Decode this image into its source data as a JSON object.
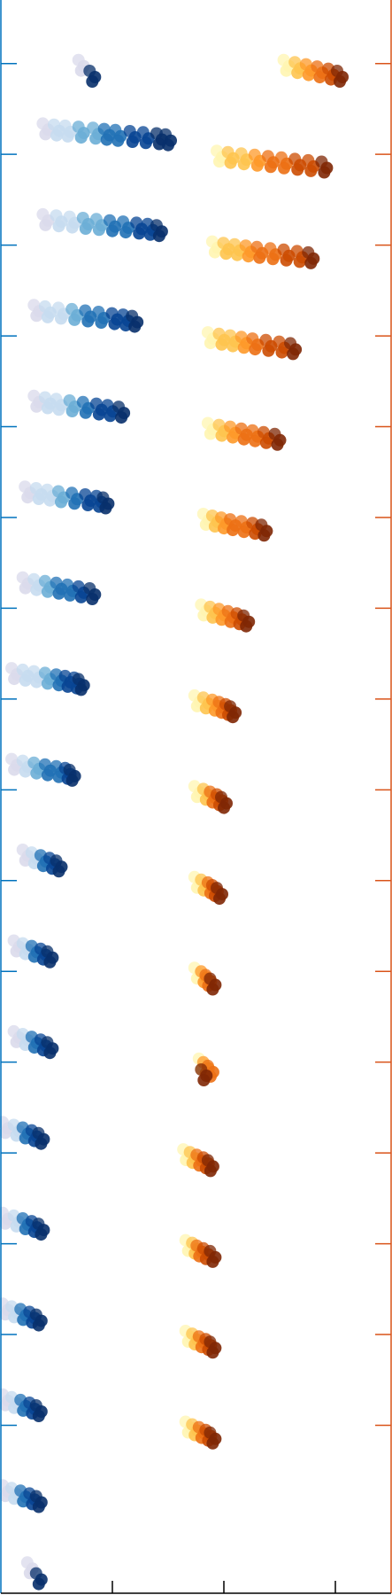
{
  "chart_data": {
    "type": "scatter",
    "title": "",
    "xlabel": "",
    "ylabel": "",
    "grid": false,
    "legend": "none",
    "colors": {
      "left_axis": "#0072bd",
      "right_axis": "#d95319",
      "frame": "#000000",
      "background": "#ffffff",
      "blue_ramp": [
        "#dadaeb",
        "#c6dbef",
        "#6baed6",
        "#2171b5",
        "#084594",
        "#08306b"
      ],
      "orange_ramp": [
        "#fff5b1",
        "#fec44f",
        "#fe9929",
        "#ec7014",
        "#cc4c02",
        "#7f2704"
      ]
    },
    "x_ticks": [
      1,
      2,
      3
    ],
    "y_ticks_left": [
      1,
      2,
      3,
      4,
      5,
      6,
      7,
      8,
      9,
      10,
      11,
      12,
      13,
      14,
      15,
      16
    ],
    "y_ticks_right": [
      1,
      2,
      3,
      4,
      5,
      6,
      7,
      8,
      9,
      10,
      11,
      12,
      13,
      14,
      15,
      16
    ],
    "xlim": [
      0,
      3.5
    ],
    "ylim": [
      -0.85,
      16.7
    ],
    "series": [
      {
        "group": "blue",
        "clusters": [
          {
            "y": 16.0,
            "x": [
              0.72,
              0.82
            ]
          },
          {
            "y": 15.3,
            "x": [
              0.4,
              0.5,
              0.6,
              0.72,
              0.85,
              0.95,
              1.05,
              1.18,
              1.3,
              1.42,
              1.5
            ]
          },
          {
            "y": 14.3,
            "x": [
              0.4,
              0.52,
              0.64,
              0.76,
              0.88,
              1.0,
              1.12,
              1.24,
              1.34,
              1.42
            ]
          },
          {
            "y": 13.3,
            "x": [
              0.32,
              0.42,
              0.54,
              0.66,
              0.78,
              0.9,
              1.02,
              1.12,
              1.2
            ]
          },
          {
            "y": 12.3,
            "x": [
              0.32,
              0.42,
              0.52,
              0.64,
              0.76,
              0.88,
              0.98,
              1.08
            ]
          },
          {
            "y": 11.3,
            "x": [
              0.24,
              0.34,
              0.44,
              0.54,
              0.66,
              0.78,
              0.88,
              0.94
            ]
          },
          {
            "y": 10.3,
            "x": [
              0.22,
              0.32,
              0.42,
              0.52,
              0.62,
              0.72,
              0.82
            ]
          },
          {
            "y": 9.3,
            "x": [
              0.12,
              0.22,
              0.32,
              0.42,
              0.52,
              0.6,
              0.68,
              0.72
            ]
          },
          {
            "y": 8.3,
            "x": [
              0.12,
              0.22,
              0.32,
              0.42,
              0.52,
              0.6,
              0.64
            ]
          },
          {
            "y": 7.3,
            "x": [
              0.22,
              0.3,
              0.38,
              0.46,
              0.52
            ]
          },
          {
            "y": 6.3,
            "x": [
              0.14,
              0.22,
              0.3,
              0.38,
              0.44
            ]
          },
          {
            "y": 5.3,
            "x": [
              0.14,
              0.22,
              0.3,
              0.38,
              0.44
            ]
          },
          {
            "y": 4.3,
            "x": [
              0.04,
              0.14,
              0.22,
              0.3,
              0.36
            ]
          },
          {
            "y": 3.3,
            "x": [
              0.04,
              0.14,
              0.22,
              0.3,
              0.36
            ]
          },
          {
            "y": 2.3,
            "x": [
              0.04,
              0.12,
              0.2,
              0.28,
              0.34
            ]
          },
          {
            "y": 1.3,
            "x": [
              0.04,
              0.12,
              0.2,
              0.28,
              0.34
            ]
          },
          {
            "y": 0.3,
            "x": [
              0.04,
              0.12,
              0.2,
              0.28,
              0.34
            ]
          },
          {
            "y": -0.55,
            "x": [
              0.26,
              0.34
            ]
          }
        ]
      },
      {
        "group": "orange",
        "clusters": [
          {
            "y": 16.0,
            "x": [
              2.56,
              2.66,
              2.76,
              2.86,
              2.96,
              3.04
            ]
          },
          {
            "y": 15.0,
            "x": [
              1.96,
              2.06,
              2.18,
              2.3,
              2.42,
              2.54,
              2.66,
              2.78,
              2.9
            ]
          },
          {
            "y": 14.0,
            "x": [
              1.92,
              2.02,
              2.12,
              2.22,
              2.32,
              2.44,
              2.56,
              2.68,
              2.78
            ]
          },
          {
            "y": 13.0,
            "x": [
              1.88,
              1.98,
              2.08,
              2.18,
              2.28,
              2.4,
              2.52,
              2.62
            ]
          },
          {
            "y": 12.0,
            "x": [
              1.88,
              1.98,
              2.08,
              2.18,
              2.28,
              2.38,
              2.48
            ]
          },
          {
            "y": 11.0,
            "x": [
              1.84,
              1.92,
              2.0,
              2.08,
              2.18,
              2.28,
              2.36
            ]
          },
          {
            "y": 10.0,
            "x": [
              1.82,
              1.9,
              1.98,
              2.06,
              2.14,
              2.2
            ]
          },
          {
            "y": 9.0,
            "x": [
              1.76,
              1.84,
              1.92,
              1.98,
              2.04,
              2.08
            ]
          },
          {
            "y": 8.0,
            "x": [
              1.76,
              1.84,
              1.9,
              1.96,
              2.0
            ]
          },
          {
            "y": 7.0,
            "x": [
              1.76,
              1.82,
              1.88,
              1.92,
              1.96
            ]
          },
          {
            "y": 6.0,
            "x": [
              1.76,
              1.82,
              1.86,
              1.9
            ]
          },
          {
            "y": 5.0,
            "x": [
              1.8,
              1.84,
              1.88,
              1.82
            ]
          },
          {
            "y": 4.0,
            "x": [
              1.66,
              1.72,
              1.78,
              1.84,
              1.88
            ]
          },
          {
            "y": 3.0,
            "x": [
              1.68,
              1.74,
              1.78,
              1.84,
              1.9
            ]
          },
          {
            "y": 2.0,
            "x": [
              1.68,
              1.74,
              1.8,
              1.86,
              1.9
            ]
          },
          {
            "y": 1.0,
            "x": [
              1.68,
              1.74,
              1.8,
              1.86,
              1.9
            ]
          }
        ]
      }
    ]
  }
}
